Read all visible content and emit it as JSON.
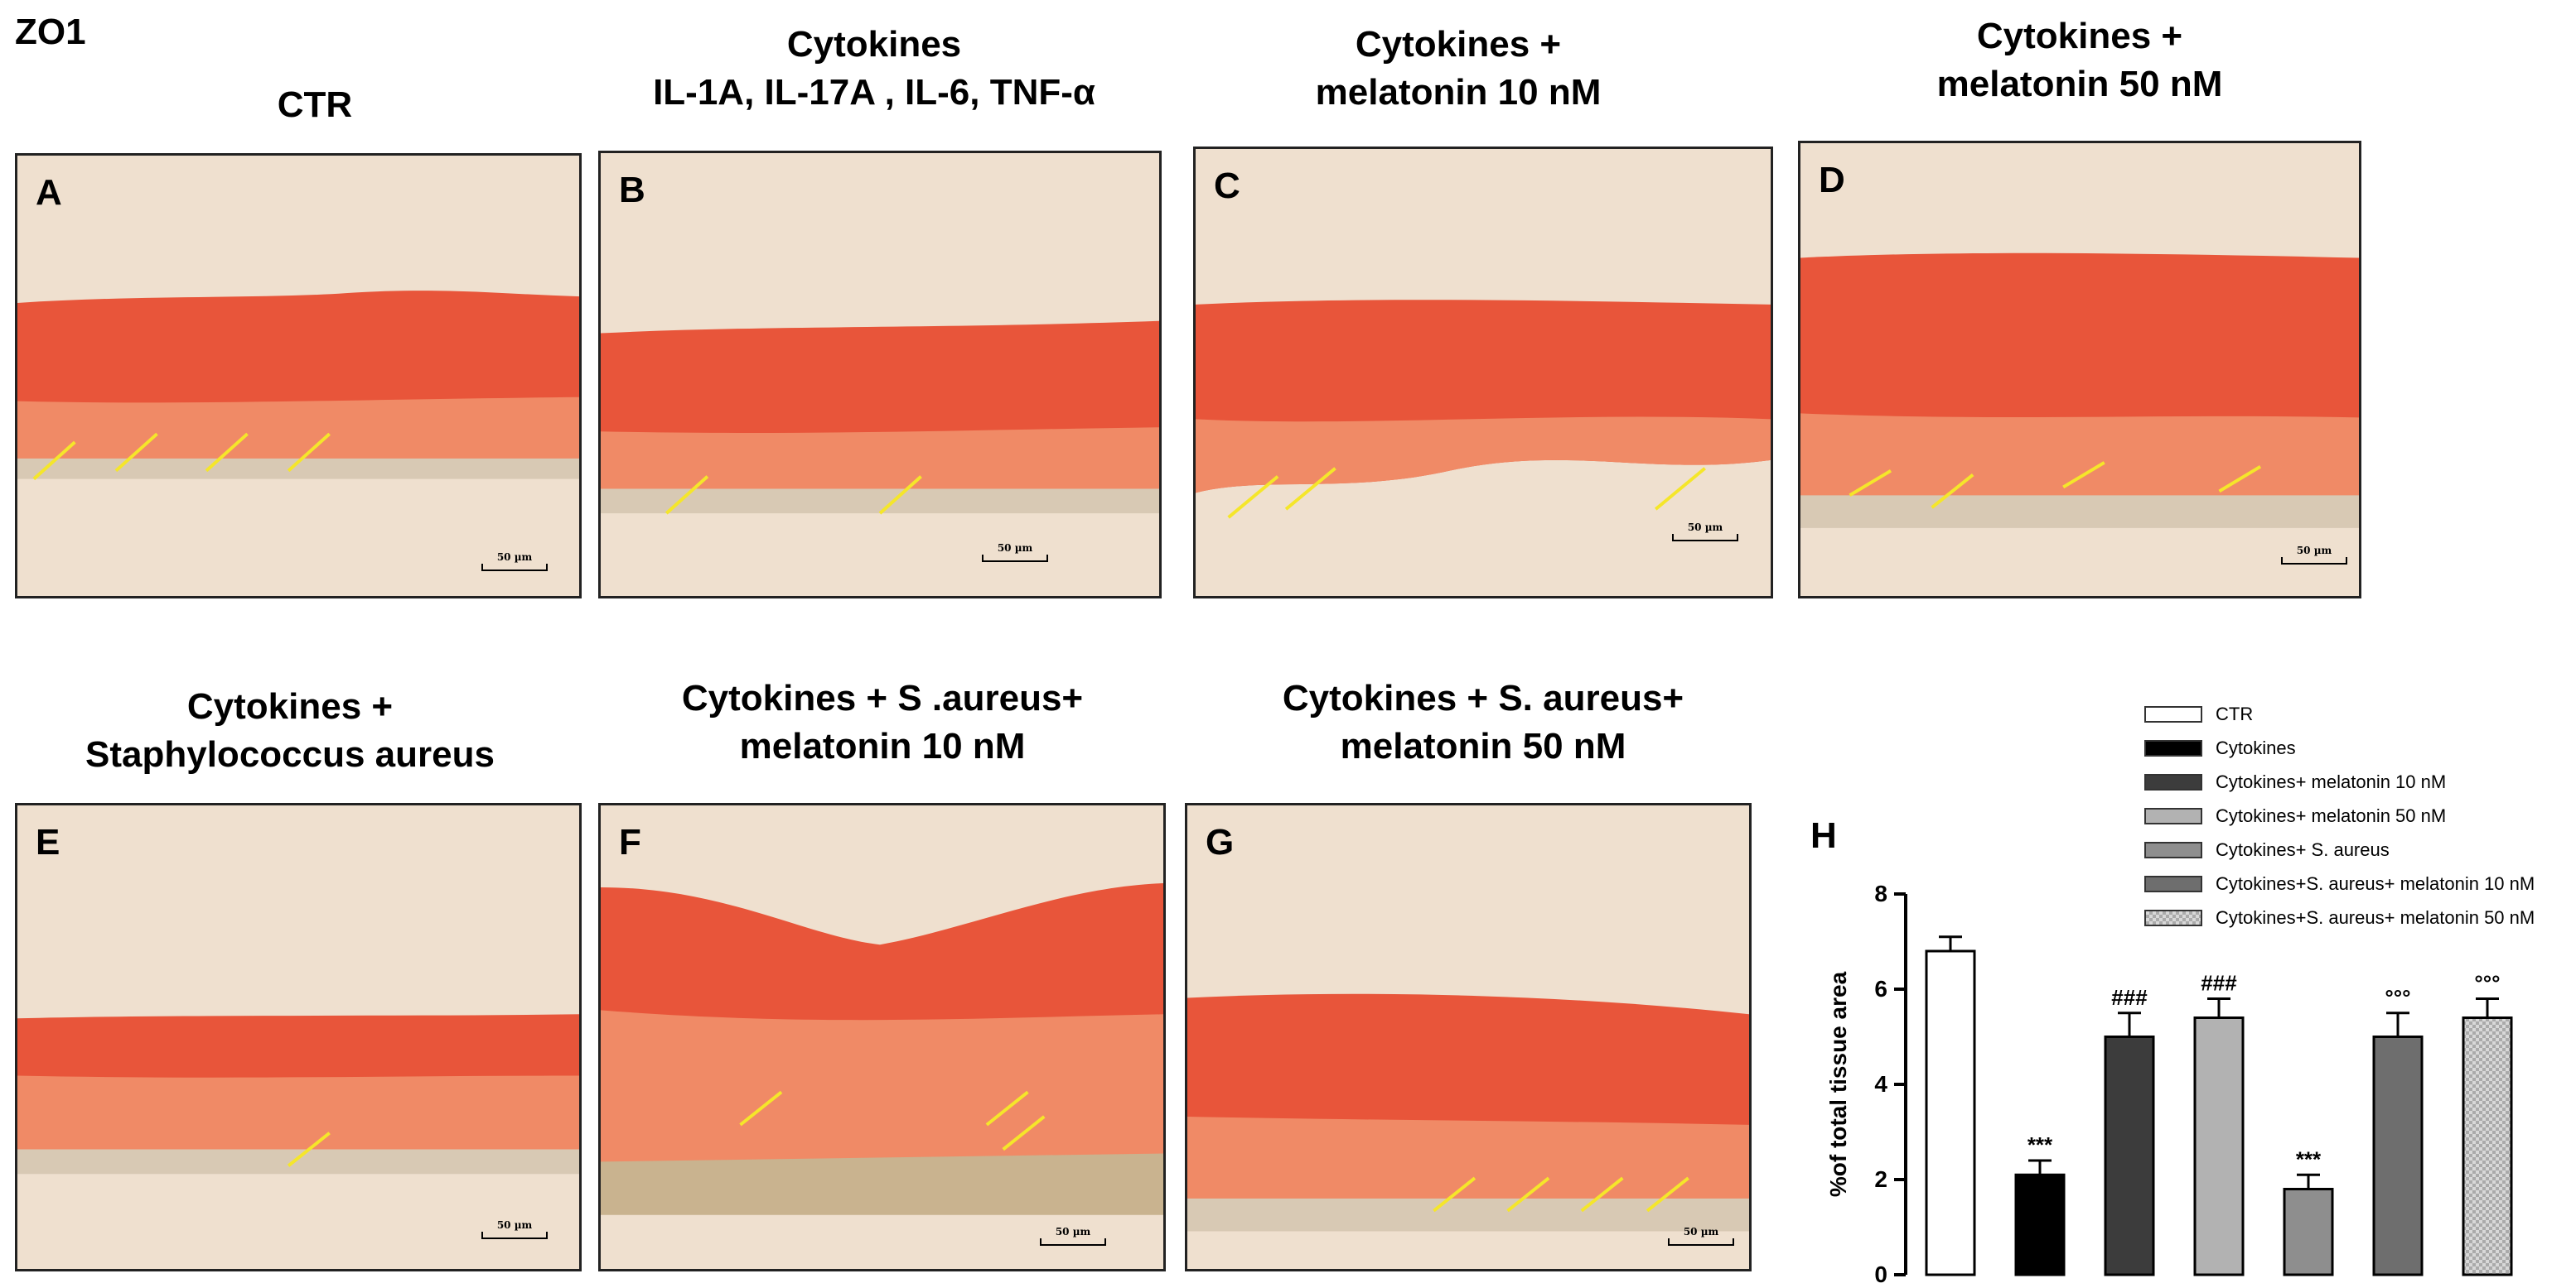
{
  "figure_label": "ZO1",
  "panels": [
    {
      "id": "A",
      "header": [
        "CTR"
      ]
    },
    {
      "id": "B",
      "header": [
        "Cytokines",
        "IL-1A, IL-17A , IL-6, TNF-α"
      ]
    },
    {
      "id": "C",
      "header": [
        "Cytokines +",
        "melatonin 10 nM"
      ]
    },
    {
      "id": "D",
      "header": [
        "Cytokines +",
        "melatonin 50 nM"
      ]
    },
    {
      "id": "E",
      "header": [
        "Cytokines +",
        "Staphylococcus aureus"
      ]
    },
    {
      "id": "F",
      "header": [
        "Cytokines + S .aureus+",
        "melatonin 10 nM"
      ]
    },
    {
      "id": "G",
      "header": [
        "Cytokines + S. aureus+",
        "melatonin 50 nM"
      ]
    }
  ],
  "scale_bar_label": "50 µm",
  "colors": {
    "tissue": "#e8553a",
    "tissue_light": "#f08a66",
    "background": "#efe0cf",
    "arrow": "#f5e62a"
  },
  "chart_data": {
    "id": "H",
    "type": "bar",
    "ylabel": "%of total tissue area",
    "ylim": [
      0,
      8
    ],
    "yticks": [
      0,
      2,
      4,
      6,
      8
    ],
    "categories": [
      "CTR",
      "Cytokines",
      "Cytokines+ melatonin 10 nM",
      "Cytokines+ melatonin 50 nM",
      "Cytokines+ S. aureus",
      "Cytokines+S. aureus+ melatonin 10 nM",
      "Cytokines+S. aureus+ melatonin 50 nM"
    ],
    "values": [
      6.8,
      2.1,
      5.0,
      5.4,
      1.8,
      5.0,
      5.4
    ],
    "errors": [
      0.3,
      0.3,
      0.5,
      0.4,
      0.3,
      0.5,
      0.4
    ],
    "annotations": [
      "",
      "***",
      "###",
      "###",
      "***",
      "°°°",
      "°°°"
    ],
    "bar_colors": [
      "#ffffff",
      "#000000",
      "#3c3c3c",
      "#b2b2b2",
      "#8e8e8e",
      "#6e6e6e",
      "#d8d8d8"
    ],
    "legend_position": "top-right"
  }
}
